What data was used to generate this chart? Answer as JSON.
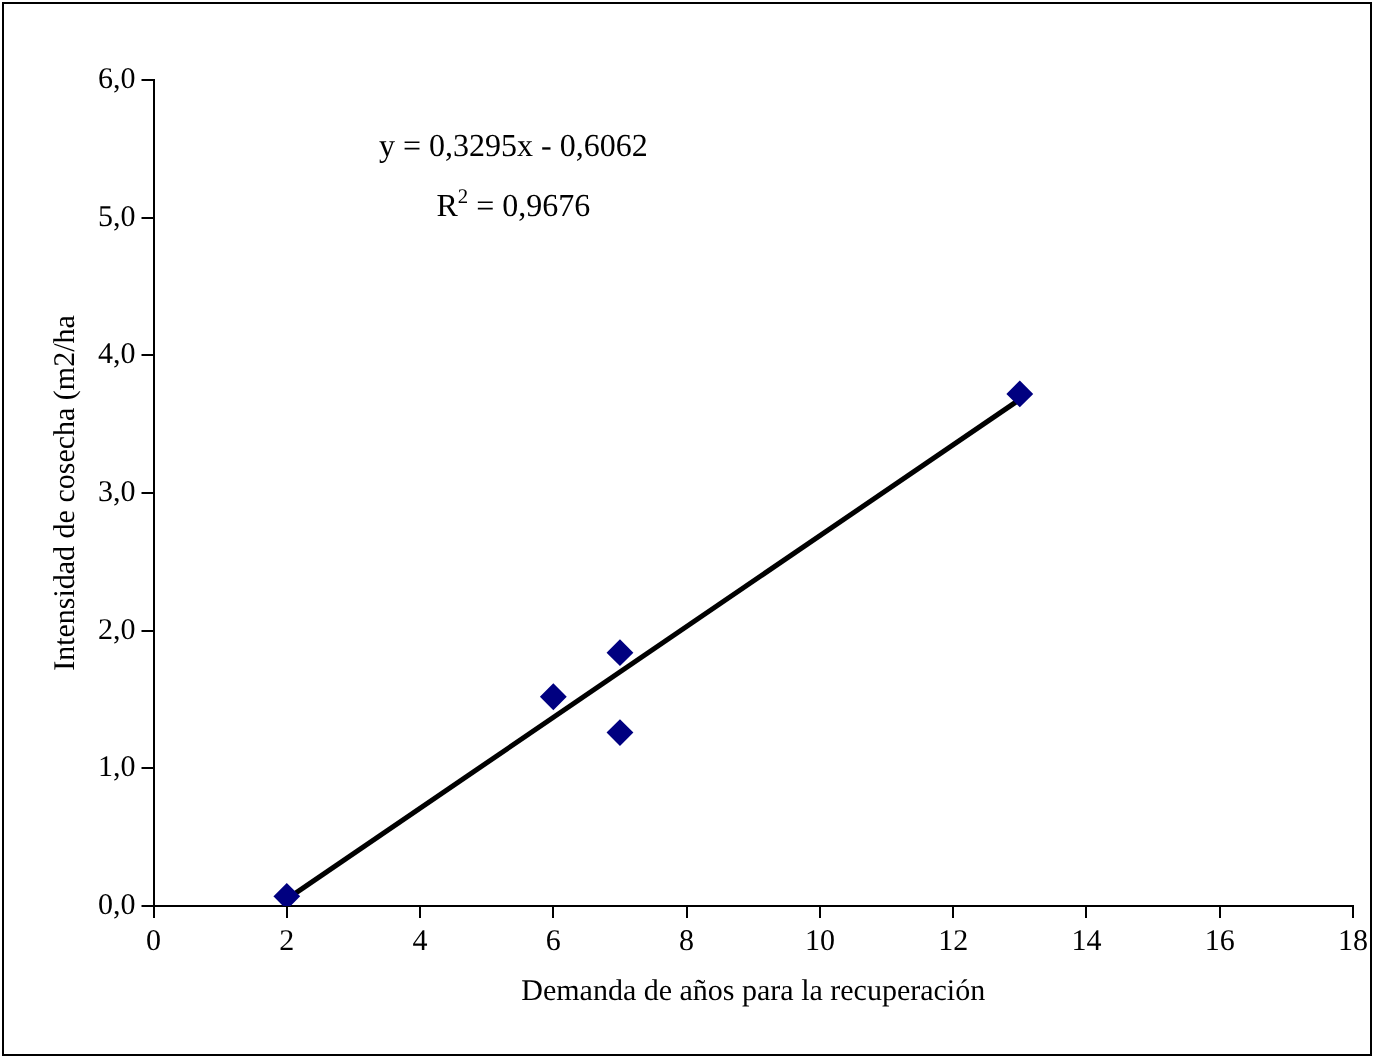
{
  "chart_data": {
    "type": "scatter",
    "xlabel": "Demanda de años para la recuperación",
    "ylabel": "Intensidad de cosecha (m2/ha",
    "annotations": [
      "y = 0,3295x - 0,6062",
      "R$^{2}$ = 0,9676"
    ],
    "series": [
      {
        "type": "scatter",
        "color": "#000080",
        "marker": "diamond",
        "x": [
          2,
          6,
          7,
          7,
          13
        ],
        "values": [
          0.07,
          1.52,
          1.84,
          1.26,
          3.72
        ]
      },
      {
        "type": "line",
        "color": "#000000",
        "marker": "none",
        "x": [
          2,
          13
        ],
        "values": [
          0.05,
          3.68
        ]
      }
    ],
    "xlim": [
      0,
      18
    ],
    "xticks": [
      0,
      2,
      4,
      6,
      8,
      10,
      12,
      14,
      16,
      18
    ],
    "ylim": [
      0,
      6
    ],
    "yticks": [
      {
        "value": 0,
        "label": "0,0"
      },
      {
        "value": 1,
        "label": "1,0"
      },
      {
        "value": 2,
        "label": "2,0"
      },
      {
        "value": 3,
        "label": "3,0"
      },
      {
        "value": 4,
        "label": "4,0"
      },
      {
        "value": 5,
        "label": "5,0"
      },
      {
        "value": 6,
        "label": "6,0"
      }
    ],
    "grid": false,
    "legend": false
  }
}
